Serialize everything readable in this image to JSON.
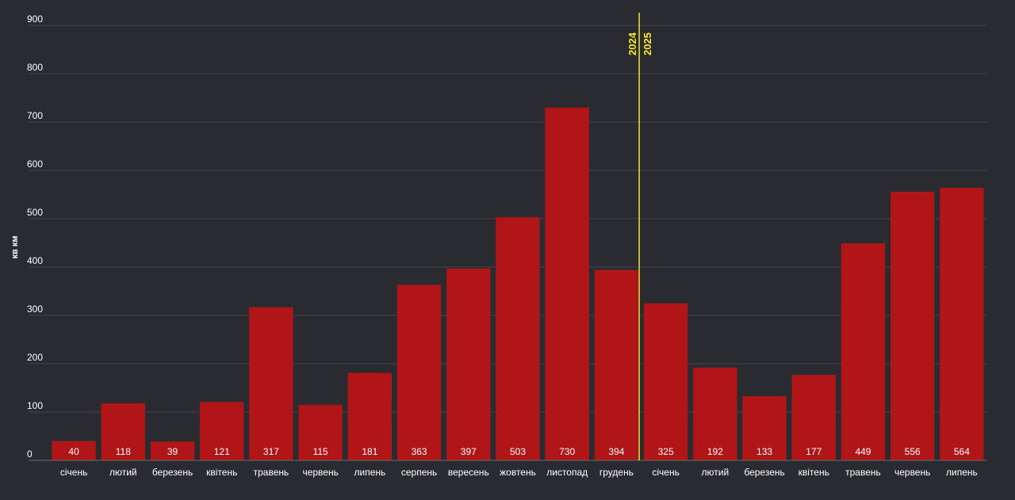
{
  "chart_data": {
    "type": "bar",
    "ylabel": "кв км",
    "xlabel": "",
    "title": "",
    "ylim": [
      0,
      900
    ],
    "yticks": [
      0,
      100,
      200,
      300,
      400,
      500,
      600,
      700,
      800,
      900
    ],
    "grid": true,
    "categories": [
      "січень",
      "лютий",
      "березень",
      "квітень",
      "травень",
      "червень",
      "липень",
      "серпень",
      "вересень",
      "жовтень",
      "листопад",
      "грудень",
      "січень",
      "лютий",
      "березень",
      "квітень",
      "травень",
      "червень",
      "липень"
    ],
    "values": [
      40,
      118,
      39,
      121,
      317,
      115,
      181,
      363,
      397,
      503,
      730,
      394,
      325,
      192,
      133,
      177,
      449,
      556,
      564
    ],
    "bar_color": "#b01517",
    "divider": {
      "after_index": 11,
      "label_before": "2024",
      "label_after": "2025",
      "color": "#f2e51d"
    }
  }
}
